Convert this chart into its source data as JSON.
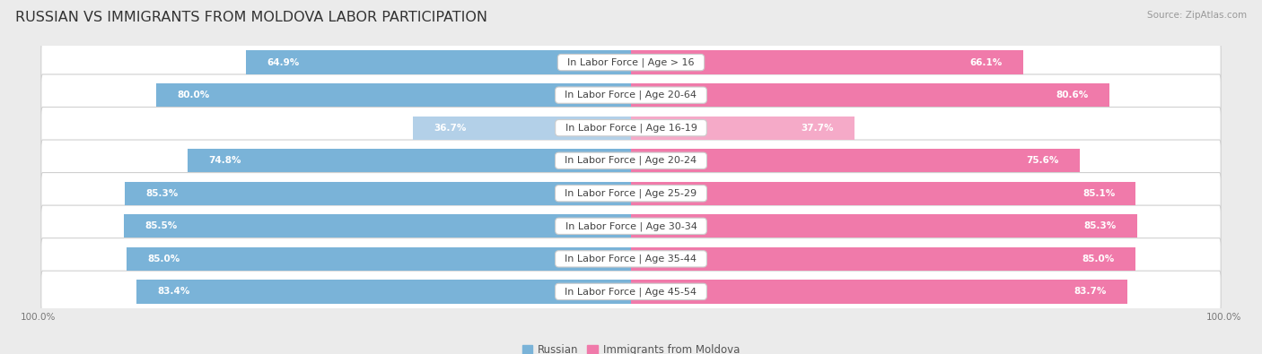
{
  "title": "RUSSIAN VS IMMIGRANTS FROM MOLDOVA LABOR PARTICIPATION",
  "source": "Source: ZipAtlas.com",
  "categories": [
    "In Labor Force | Age > 16",
    "In Labor Force | Age 20-64",
    "In Labor Force | Age 16-19",
    "In Labor Force | Age 20-24",
    "In Labor Force | Age 25-29",
    "In Labor Force | Age 30-34",
    "In Labor Force | Age 35-44",
    "In Labor Force | Age 45-54"
  ],
  "russian_values": [
    64.9,
    80.0,
    36.7,
    74.8,
    85.3,
    85.5,
    85.0,
    83.4
  ],
  "moldova_values": [
    66.1,
    80.6,
    37.7,
    75.6,
    85.1,
    85.3,
    85.0,
    83.7
  ],
  "russian_color_dark": "#7ab3d8",
  "russian_color_light": "#b3d0e8",
  "moldova_color_dark": "#f07aaa",
  "moldova_color_light": "#f5aac8",
  "background_color": "#ebebeb",
  "row_bg_color": "#ffffff",
  "max_value": 100.0,
  "bar_height": 0.72,
  "title_fontsize": 11.5,
  "label_fontsize": 8.0,
  "value_fontsize": 7.5,
  "legend_fontsize": 8.5,
  "axis_label_fontsize": 7.5,
  "low_threshold": 50
}
